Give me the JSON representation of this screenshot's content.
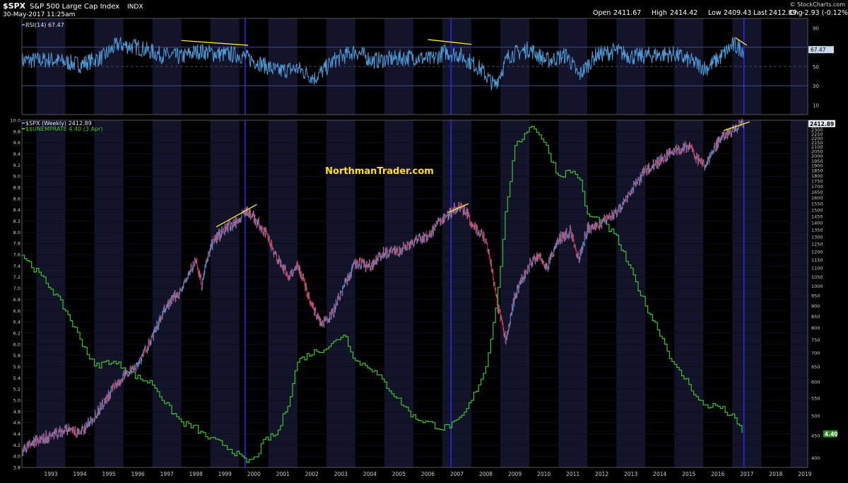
{
  "header": {
    "symbol": "$SPX",
    "name": "S&P 500 Large Cap Index",
    "exchange": "INDX",
    "datetime": "30-May-2017 11:25am",
    "brand": "© StockCharts.com",
    "quote": {
      "open_label": "Open",
      "open": "2411.67",
      "high_label": "High",
      "high": "2414.42",
      "low_label": "Low",
      "low": "2409.43",
      "last_label": "Last",
      "last": "2412.89",
      "chg_label": "Chg",
      "chg": "-2.93 (-0.12%)"
    }
  },
  "watermark": "NorthmanTrader.com",
  "colors": {
    "background": "#000000",
    "band": "#13132a",
    "rsi_line": "#4f9ad6",
    "spx_up": "#5b8fd6",
    "spx_down": "#d63a4a",
    "unemp": "#3fbf2e",
    "trend": "#ffeb3b",
    "marker": "#2a2af0",
    "watermark": "#ffe11a"
  },
  "chart_data": [
    {
      "type": "line",
      "legend": "RSI(14) 67.47",
      "series": [
        {
          "name": "RSI(14)",
          "last": 67.47
        }
      ],
      "ylim": [
        0,
        100
      ],
      "yticks": [
        90,
        70,
        50,
        30,
        10
      ],
      "reference_lines": [
        70,
        50,
        30
      ],
      "last_value_label": "67.47",
      "x": [
        1992.5,
        1993.5,
        1994.5,
        1995.3,
        1995.8,
        1996.5,
        1997.3,
        1998.0,
        1998.6,
        1999.3,
        2000.0,
        2000.6,
        2001.3,
        2002.0,
        2002.6,
        2003.3,
        2004.0,
        2004.6,
        2005.3,
        2006.0,
        2006.6,
        2007.1,
        2007.6,
        2008.3,
        2008.8,
        2009.3,
        2010.0,
        2010.6,
        2011.3,
        2011.7,
        2012.3,
        2013.0,
        2013.6,
        2014.3,
        2015.0,
        2015.6,
        2016.1,
        2016.6,
        2017.0,
        2017.4
      ],
      "values": [
        56,
        57,
        52,
        60,
        73,
        70,
        62,
        60,
        66,
        63,
        62,
        55,
        45,
        48,
        38,
        57,
        66,
        56,
        58,
        60,
        57,
        65,
        62,
        48,
        30,
        62,
        68,
        56,
        62,
        40,
        62,
        66,
        60,
        62,
        63,
        55,
        48,
        60,
        72,
        67.47
      ],
      "trendlines": [
        {
          "from": [
            1998.0,
            77
          ],
          "to": [
            2000.3,
            72
          ]
        },
        {
          "from": [
            2006.5,
            78
          ],
          "to": [
            2008.0,
            73
          ]
        },
        {
          "from": [
            2017.1,
            80
          ],
          "to": [
            2017.5,
            72
          ]
        }
      ],
      "vlines": [
        2000.2,
        2007.3,
        2017.4
      ]
    },
    {
      "type": "line",
      "legend": [
        {
          "label": "$SPX (Weekly) 2412.89",
          "color": "#5b8fd6"
        },
        {
          "label": "$$UNEMPRATE 4.40 (3 Apr)",
          "color": "#3fbf2e"
        }
      ],
      "x": [
        1992.5,
        1993.0,
        1993.5,
        1994.0,
        1994.5,
        1995.0,
        1995.5,
        1996.0,
        1996.5,
        1997.0,
        1997.5,
        1998.0,
        1998.5,
        1998.7,
        1999.0,
        1999.5,
        2000.0,
        2000.2,
        2000.5,
        2000.9,
        2001.3,
        2001.7,
        2002.0,
        2002.5,
        2002.8,
        2003.2,
        2003.6,
        2004.0,
        2004.5,
        2005.0,
        2005.5,
        2006.0,
        2006.5,
        2007.0,
        2007.5,
        2007.8,
        2008.0,
        2008.5,
        2008.9,
        2009.2,
        2009.5,
        2010.0,
        2010.3,
        2010.6,
        2011.0,
        2011.4,
        2011.7,
        2012.0,
        2012.5,
        2013.0,
        2013.5,
        2014.0,
        2014.5,
        2015.0,
        2015.5,
        2015.8,
        2016.1,
        2016.5,
        2017.0,
        2017.4
      ],
      "series": [
        {
          "name": "$SPX (Weekly)",
          "last": 2412.89,
          "axis": "right",
          "values": [
            415,
            440,
            450,
            465,
            455,
            500,
            560,
            620,
            660,
            760,
            900,
            980,
            1150,
            1000,
            1240,
            1360,
            1420,
            1500,
            1440,
            1320,
            1160,
            1050,
            1120,
            900,
            820,
            860,
            1000,
            1130,
            1110,
            1200,
            1200,
            1270,
            1300,
            1430,
            1520,
            1490,
            1400,
            1280,
            900,
            740,
            950,
            1120,
            1180,
            1100,
            1280,
            1340,
            1150,
            1360,
            1400,
            1480,
            1650,
            1850,
            1950,
            2060,
            2100,
            1950,
            1900,
            2150,
            2300,
            2412.89
          ]
        },
        {
          "name": "$$UNEMPRATE",
          "last": 4.4,
          "axis": "left",
          "values": [
            7.6,
            7.3,
            7.0,
            6.6,
            6.1,
            5.6,
            5.7,
            5.6,
            5.4,
            5.3,
            4.9,
            4.6,
            4.5,
            4.4,
            4.3,
            4.2,
            4.0,
            3.9,
            3.95,
            4.3,
            4.4,
            5.0,
            5.7,
            5.85,
            5.9,
            6.0,
            6.2,
            5.7,
            5.6,
            5.3,
            5.0,
            4.7,
            4.6,
            4.5,
            4.6,
            4.8,
            5.0,
            5.6,
            6.9,
            8.5,
            9.5,
            9.9,
            9.8,
            9.5,
            9.0,
            9.1,
            9.0,
            8.3,
            8.2,
            7.9,
            7.3,
            6.7,
            6.2,
            5.6,
            5.3,
            5.0,
            4.9,
            4.9,
            4.7,
            4.4
          ]
        }
      ],
      "trendlines": [
        {
          "axis": "right",
          "from": [
            1999.2,
            1370
          ],
          "to": [
            2000.6,
            1545
          ]
        },
        {
          "axis": "right",
          "from": [
            2007.2,
            1480
          ],
          "to": [
            2007.9,
            1550
          ]
        },
        {
          "axis": "right",
          "from": [
            2016.7,
            2290
          ],
          "to": [
            2017.6,
            2400
          ]
        }
      ],
      "vlines": [
        2000.2,
        2007.3,
        2017.4
      ],
      "y_left_ticks": [
        "10.0",
        "9.8",
        "9.6",
        "9.4",
        "9.2",
        "9.0",
        "8.8",
        "8.6",
        "8.4",
        "8.2",
        "8.0",
        "7.8",
        "7.6",
        "7.4",
        "7.2",
        "7.0",
        "6.8",
        "6.6",
        "6.4",
        "6.2",
        "6.0",
        "5.8",
        "5.6",
        "5.4",
        "5.2",
        "5.0",
        "4.8",
        "4.6",
        "4.4",
        "4.2",
        "4.0",
        "3.8"
      ],
      "y_left_range": [
        3.8,
        10.0
      ],
      "y_right_ticks": [
        2400,
        2350,
        2300,
        2250,
        2200,
        2150,
        2100,
        2050,
        2000,
        1950,
        1900,
        1850,
        1800,
        1750,
        1700,
        1650,
        1600,
        1550,
        1500,
        1450,
        1400,
        1350,
        1300,
        1250,
        1200,
        1150,
        1100,
        1050,
        1000,
        950,
        900,
        850,
        800,
        750,
        700,
        650,
        600,
        550,
        500,
        450,
        400
      ],
      "y_right_scale": "log",
      "y_right_range": [
        380,
        2420
      ],
      "last_labels": {
        "spx": "2412.89",
        "unemp": "4.40"
      },
      "x_ticks": [
        "1993",
        "1994",
        "1995",
        "1996",
        "1997",
        "1998",
        "1999",
        "2000",
        "2001",
        "2002",
        "2003",
        "2004",
        "2005",
        "2006",
        "2007",
        "2008",
        "2009",
        "2010",
        "2011",
        "2012",
        "2013",
        "2014",
        "2015",
        "2016",
        "2017",
        "2018",
        "2019"
      ],
      "xlim": [
        1992.5,
        2019.6
      ]
    }
  ]
}
